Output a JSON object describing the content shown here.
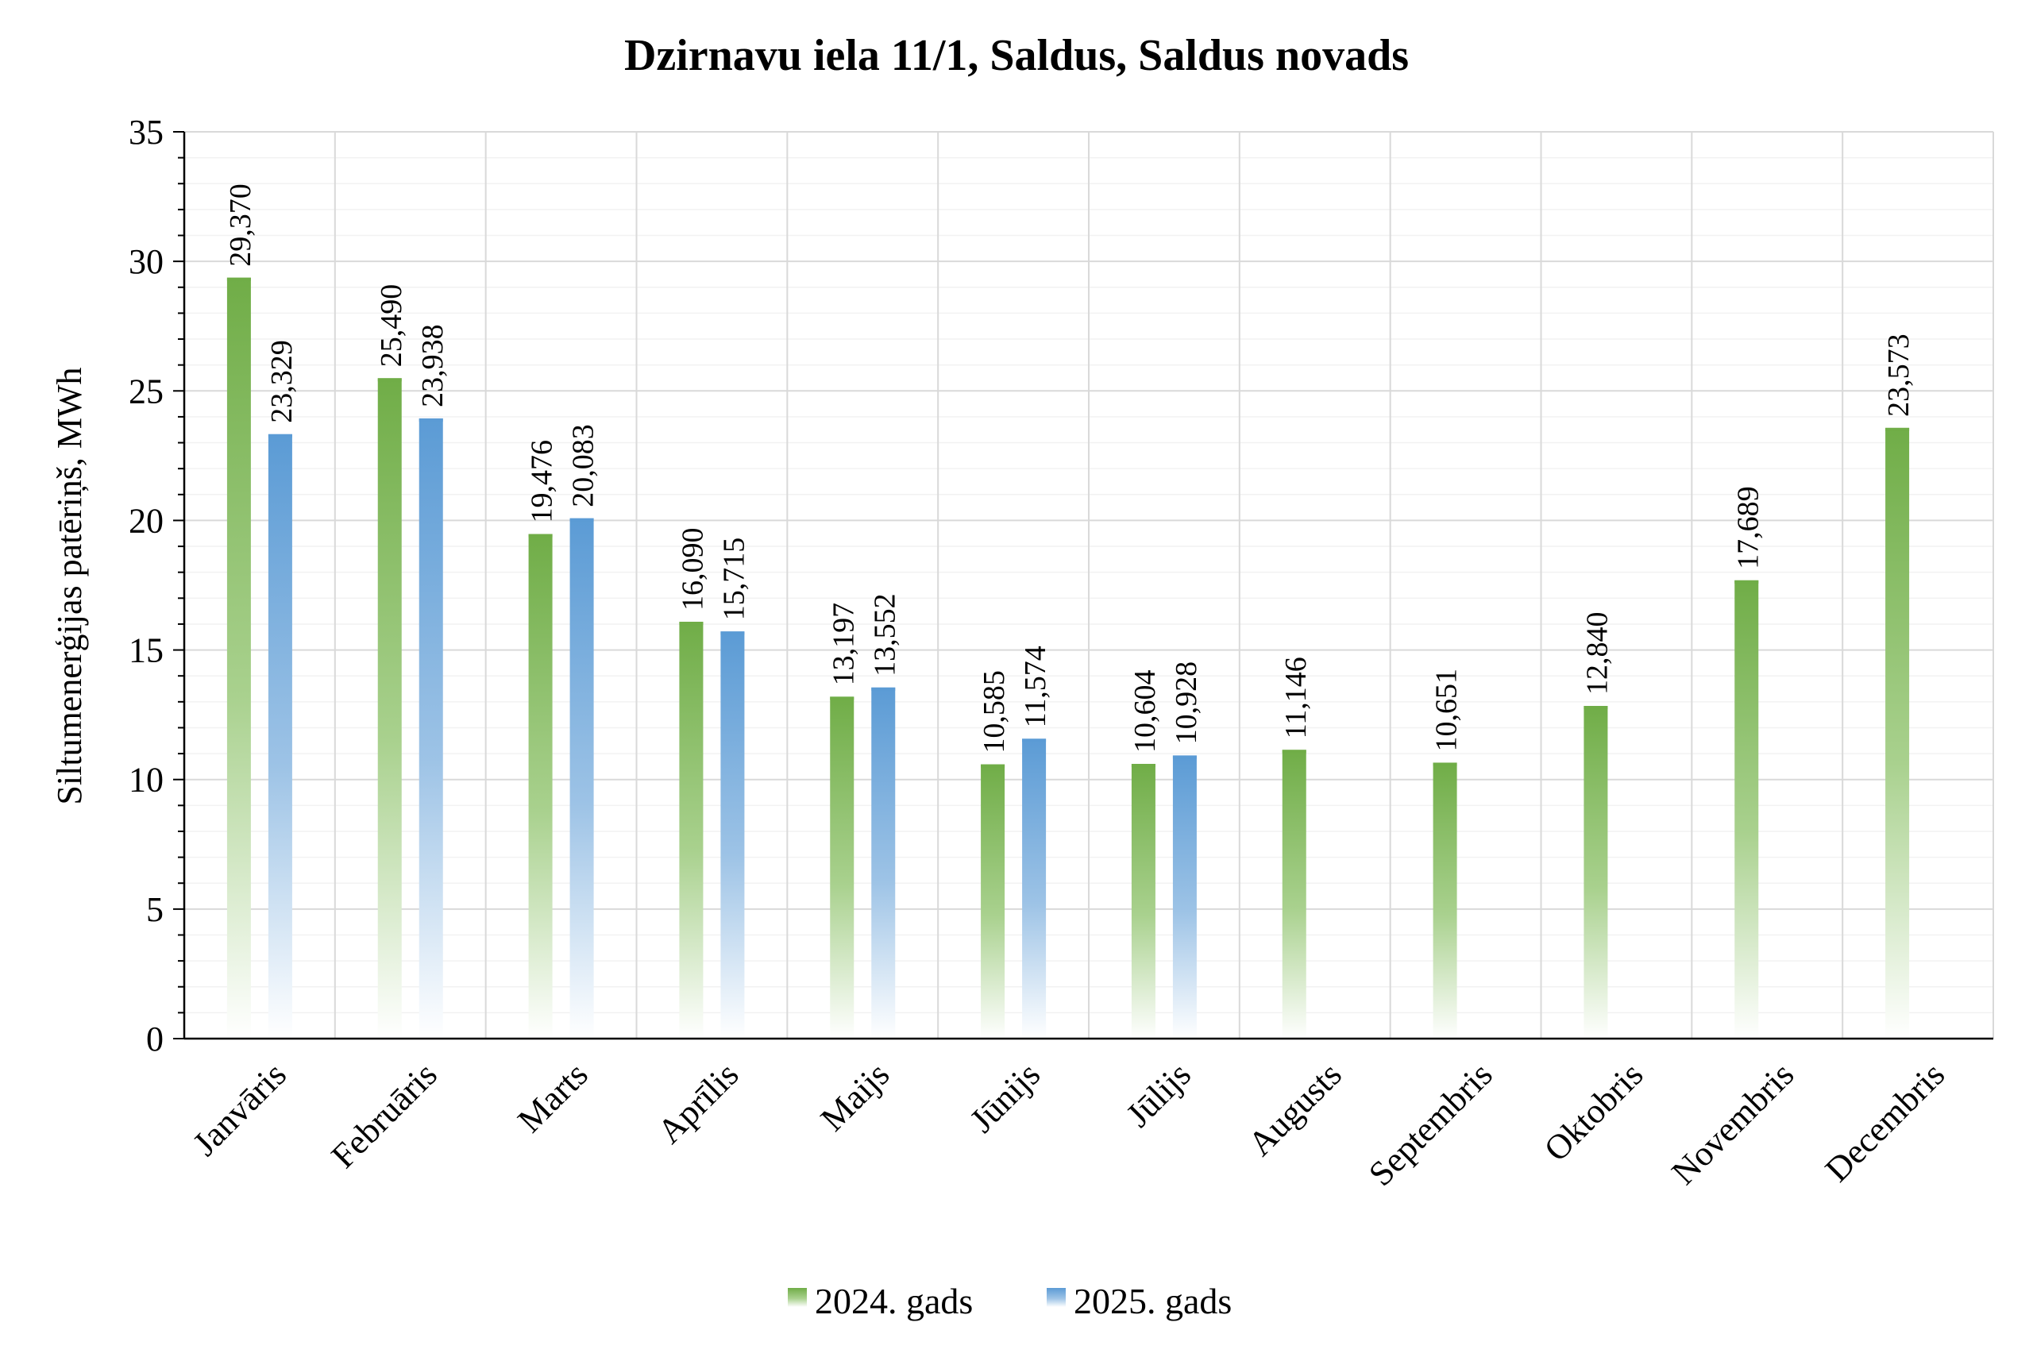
{
  "chart_data": {
    "type": "bar",
    "title": "Dzirnavu iela 11/1, Saldus, Saldus novads",
    "xlabel": "",
    "ylabel": "Siltumenerģijas patēriņš, MWh",
    "ylim": [
      0,
      35
    ],
    "yticks": [
      "0",
      "5",
      "10",
      "15",
      "20",
      "25",
      "30",
      "35"
    ],
    "grid": true,
    "legend_position": "bottom",
    "categories": [
      "Janvāris",
      "Februāris",
      "Marts",
      "Aprīlis",
      "Maijs",
      "Jūnijs",
      "Jūlijs",
      "Augusts",
      "Septembris",
      "Oktobris",
      "Novembris",
      "Decembris"
    ],
    "series": [
      {
        "name": "2024. gads",
        "color": "#70ad47",
        "values": [
          29.37,
          25.49,
          19.476,
          16.09,
          13.197,
          10.585,
          10.604,
          11.146,
          10.651,
          12.84,
          17.689,
          23.573
        ],
        "labels": [
          "29,370",
          "25,490",
          "19,476",
          "16,090",
          "13,197",
          "10,585",
          "10,604",
          "11,146",
          "10,651",
          "12,840",
          "17,689",
          "23,573"
        ]
      },
      {
        "name": "2025. gads",
        "color": "#5b9bd5",
        "values": [
          23.329,
          23.938,
          20.083,
          15.715,
          13.552,
          11.574,
          10.928,
          null,
          null,
          null,
          null,
          null
        ],
        "labels": [
          "23,329",
          "23,938",
          "20,083",
          "15,715",
          "13,552",
          "11,574",
          "10,928",
          "",
          "",
          "",
          "",
          ""
        ]
      }
    ]
  }
}
